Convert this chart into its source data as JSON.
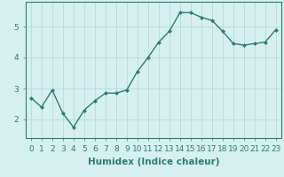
{
  "x": [
    0,
    1,
    2,
    3,
    4,
    5,
    6,
    7,
    8,
    9,
    10,
    11,
    12,
    13,
    14,
    15,
    16,
    17,
    18,
    19,
    20,
    21,
    22,
    23
  ],
  "y": [
    2.7,
    2.4,
    2.95,
    2.2,
    1.75,
    2.3,
    2.6,
    2.85,
    2.85,
    2.95,
    3.55,
    4.0,
    4.5,
    4.85,
    5.45,
    5.45,
    5.3,
    5.2,
    4.85,
    4.45,
    4.4,
    4.45,
    4.5,
    4.9
  ],
  "line_color": "#2e7d6e",
  "marker": "D",
  "marker_size": 2,
  "bg_color": "#d6f0f0",
  "grid_color": "#b8dada",
  "xlabel": "Humidex (Indice chaleur)",
  "xlabel_fontsize": 7.5,
  "xtick_labels": [
    "0",
    "1",
    "2",
    "3",
    "4",
    "5",
    "6",
    "7",
    "8",
    "9",
    "10",
    "11",
    "12",
    "13",
    "14",
    "15",
    "16",
    "17",
    "18",
    "19",
    "20",
    "21",
    "22",
    "23"
  ],
  "yticks": [
    2,
    3,
    4,
    5
  ],
  "ylim": [
    1.4,
    5.8
  ],
  "xlim": [
    -0.5,
    23.5
  ],
  "tick_fontsize": 6.5,
  "linewidth": 1.0
}
